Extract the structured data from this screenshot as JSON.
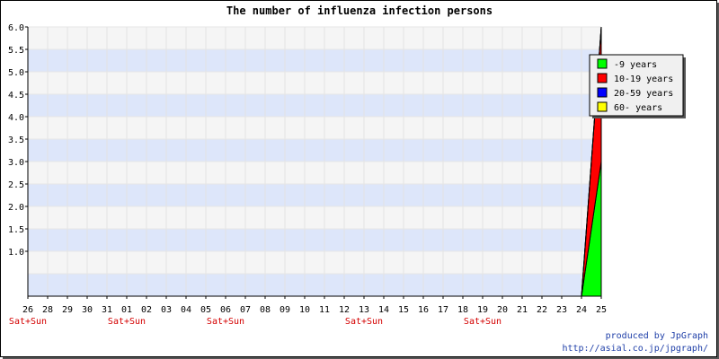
{
  "chart_data": {
    "type": "area",
    "stacked": true,
    "title": "The number of influenza infection persons",
    "x_categories": [
      "26",
      "28",
      "29",
      "30",
      "31",
      "01",
      "02",
      "03",
      "04",
      "05",
      "06",
      "07",
      "08",
      "09",
      "10",
      "11",
      "12",
      "13",
      "14",
      "15",
      "16",
      "17",
      "18",
      "19",
      "20",
      "21",
      "22",
      "23",
      "24",
      "25"
    ],
    "weekend_labels": [
      {
        "category": "26",
        "label": "Sat+Sun"
      },
      {
        "category": "01",
        "label": "Sat+Sun"
      },
      {
        "category": "06",
        "label": "Sat+Sun"
      },
      {
        "category": "13",
        "label": "Sat+Sun"
      },
      {
        "category": "19",
        "label": "Sat+Sun"
      }
    ],
    "ylim": [
      0,
      6
    ],
    "y_ticks": [
      "1.0",
      "1.5",
      "2.0",
      "2.5",
      "3.0",
      "3.5",
      "4.0",
      "4.5",
      "5.0",
      "5.5",
      "6.0"
    ],
    "grid": true,
    "legend_position": "top-right",
    "series": [
      {
        "name": "-9 years",
        "color": "#00ff00",
        "values": [
          0,
          0,
          0,
          0,
          0,
          0,
          0,
          0,
          0,
          0,
          0,
          0,
          0,
          0,
          0,
          0,
          0,
          0,
          0,
          0,
          0,
          0,
          0,
          0,
          0,
          0,
          0,
          0,
          0,
          3
        ]
      },
      {
        "name": "10-19 years",
        "color": "#ff0000",
        "values": [
          0,
          0,
          0,
          0,
          0,
          0,
          0,
          0,
          0,
          0,
          0,
          0,
          0,
          0,
          0,
          0,
          0,
          0,
          0,
          0,
          0,
          0,
          0,
          0,
          0,
          0,
          0,
          0,
          0,
          3
        ]
      },
      {
        "name": "20-59 years",
        "color": "#0000ff",
        "values": [
          0,
          0,
          0,
          0,
          0,
          0,
          0,
          0,
          0,
          0,
          0,
          0,
          0,
          0,
          0,
          0,
          0,
          0,
          0,
          0,
          0,
          0,
          0,
          0,
          0,
          0,
          0,
          0,
          0,
          0
        ]
      },
      {
        "name": "60- years",
        "color": "#ffff00",
        "values": [
          0,
          0,
          0,
          0,
          0,
          0,
          0,
          0,
          0,
          0,
          0,
          0,
          0,
          0,
          0,
          0,
          0,
          0,
          0,
          0,
          0,
          0,
          0,
          0,
          0,
          0,
          0,
          0,
          0,
          0
        ]
      }
    ],
    "band_colors": [
      "#dde6fa",
      "#f5f5f5"
    ]
  },
  "credits": {
    "line1": "produced by JpGraph",
    "line2": "http://asial.co.jp/jpgraph/"
  }
}
